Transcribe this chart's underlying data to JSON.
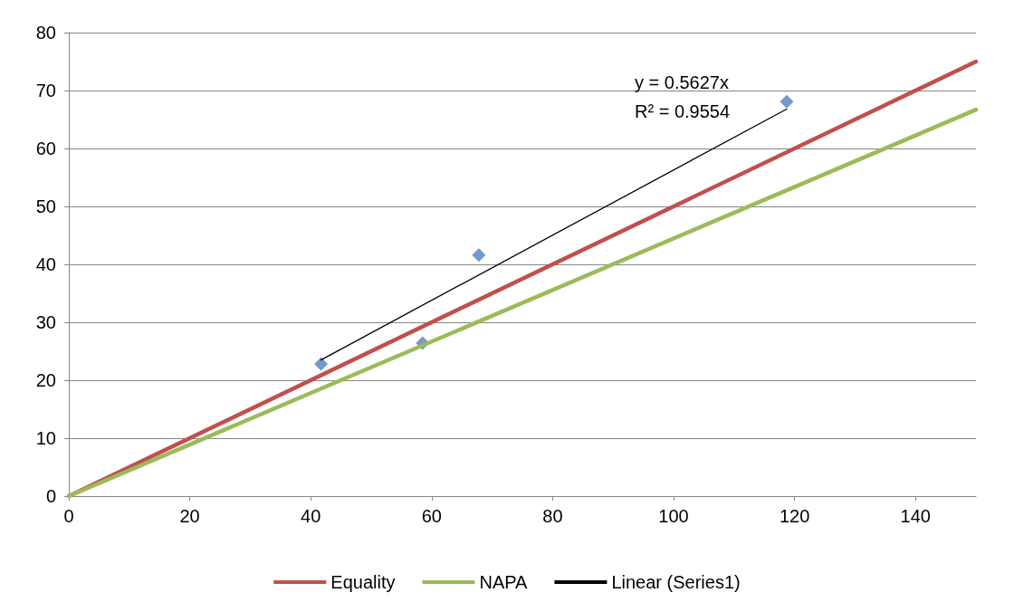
{
  "chart_data": {
    "type": "scatter",
    "xlim": [
      0,
      150
    ],
    "ylim": [
      0,
      80
    ],
    "xticks": [
      0,
      20,
      40,
      60,
      80,
      100,
      120,
      140
    ],
    "yticks": [
      0,
      10,
      20,
      30,
      40,
      50,
      60,
      70,
      80
    ],
    "grid": "y",
    "legend": "bottom",
    "annotations": [
      "y = 0.5627x",
      "R² = 0.9554"
    ],
    "series": [
      {
        "type": "scatter",
        "color": "#4f81bd",
        "marker": "diamond",
        "x": [
          41.7,
          58.5,
          67.8,
          118.7
        ],
        "values": [
          22.8,
          26.4,
          41.6,
          68.1
        ]
      },
      {
        "type": "line",
        "name": "Equality",
        "color": "#c0504d",
        "marker": "none",
        "x": [
          0,
          150
        ],
        "values": [
          0,
          75
        ]
      },
      {
        "type": "line",
        "name": "NAPA",
        "color": "#9bbb59",
        "marker": "none",
        "x": [
          0,
          150
        ],
        "values": [
          0,
          66.7
        ]
      },
      {
        "type": "line",
        "name": "Linear (Series1)",
        "color": "#000000",
        "marker": "none",
        "x": [
          41.7,
          118.7
        ],
        "values": [
          23.5,
          66.8
        ]
      }
    ]
  }
}
